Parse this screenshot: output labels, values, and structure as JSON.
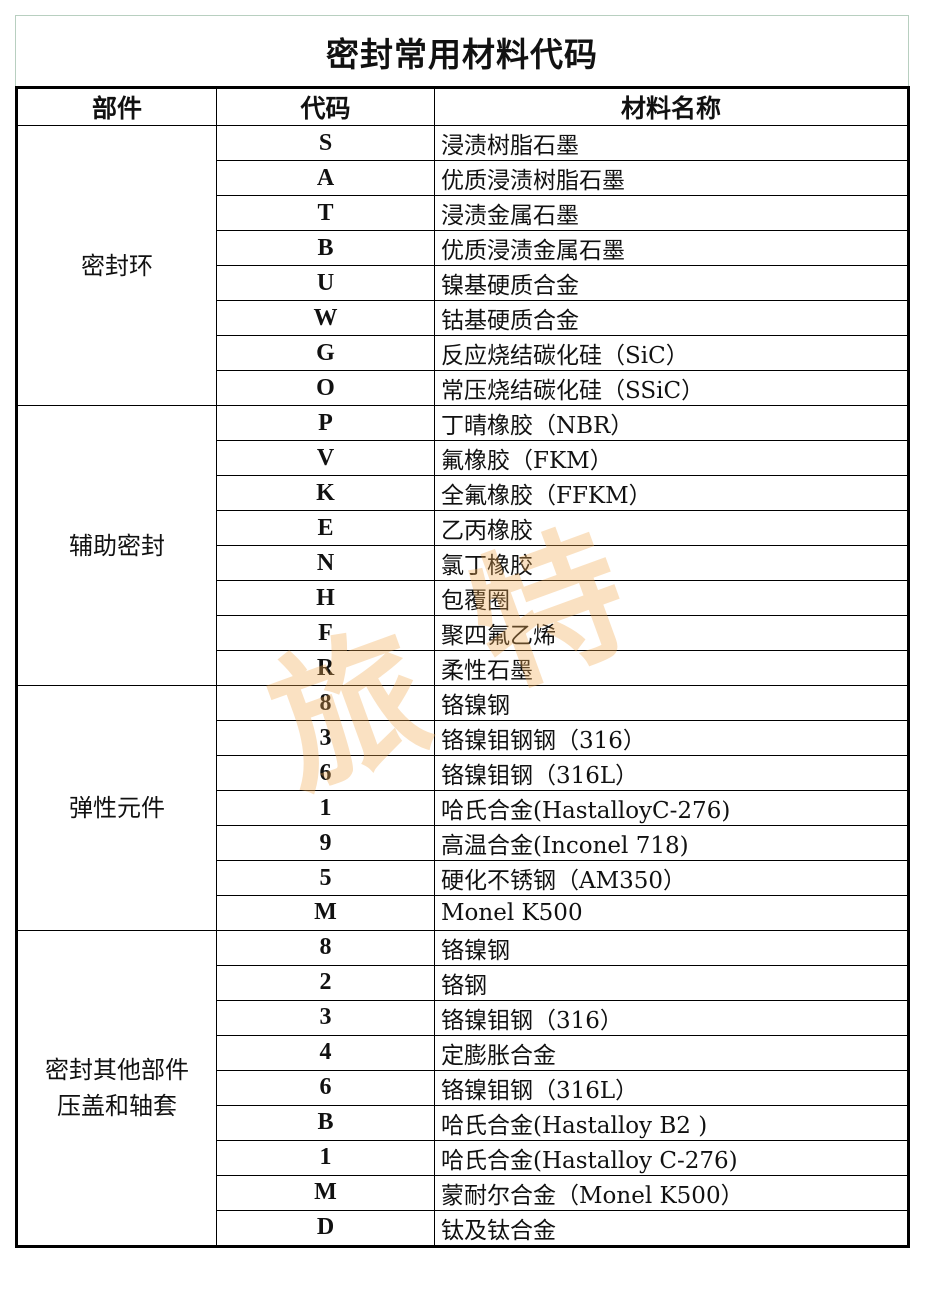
{
  "title": "密封常用材料代码",
  "headers": [
    "部件",
    "代码",
    "材料名称"
  ],
  "groups": [
    {
      "part": "密封环",
      "rows": [
        [
          "S",
          "浸渍树脂石墨"
        ],
        [
          "A",
          "优质浸渍树脂石墨"
        ],
        [
          "T",
          "浸渍金属石墨"
        ],
        [
          "B",
          "优质浸渍金属石墨"
        ],
        [
          "U",
          "镍基硬质合金"
        ],
        [
          "W",
          "钴基硬质合金"
        ],
        [
          "G",
          "反应烧结碳化硅（SiC）"
        ],
        [
          "O",
          "常压烧结碳化硅（SSiC）"
        ]
      ]
    },
    {
      "part": "辅助密封",
      "rows": [
        [
          "P",
          "丁晴橡胶（NBR）"
        ],
        [
          "V",
          "氟橡胶（FKM）"
        ],
        [
          "K",
          "全氟橡胶（FFKM）"
        ],
        [
          "E",
          "乙丙橡胶"
        ],
        [
          "N",
          "氯丁橡胶"
        ],
        [
          "H",
          "包覆圈"
        ],
        [
          "F",
          "聚四氟乙烯"
        ],
        [
          "R",
          "柔性石墨"
        ]
      ]
    },
    {
      "part": "弹性元件",
      "rows": [
        [
          "8",
          "铬镍钢"
        ],
        [
          "3",
          "铬镍钼钢钢（316）"
        ],
        [
          "6",
          "铬镍钼钢（316L）"
        ],
        [
          "1",
          "哈氏合金(HastalloyC-276)"
        ],
        [
          "9",
          "高温合金(Inconel 718)"
        ],
        [
          "5",
          "硬化不锈钢（AM350）"
        ],
        [
          "M",
          "Monel K500"
        ]
      ]
    },
    {
      "part": "密封其他部件\n压盖和轴套",
      "rows": [
        [
          "8",
          "铬镍钢"
        ],
        [
          "2",
          "铬钢"
        ],
        [
          "3",
          "铬镍钼钢（316）"
        ],
        [
          "4",
          "定膨胀合金"
        ],
        [
          "6",
          "铬镍钼钢（316L）"
        ],
        [
          "B",
          "哈氏合金(Hastalloy B2 )"
        ],
        [
          "1",
          "哈氏合金(Hastalloy C-276)"
        ],
        [
          "M",
          "蒙耐尔合金（Monel K500）"
        ],
        [
          "D",
          "钛及钛合金"
        ]
      ]
    }
  ],
  "watermark": "旅特",
  "colors": {
    "watermark": "#f0aa50",
    "title_border": "#b8cfc0"
  }
}
